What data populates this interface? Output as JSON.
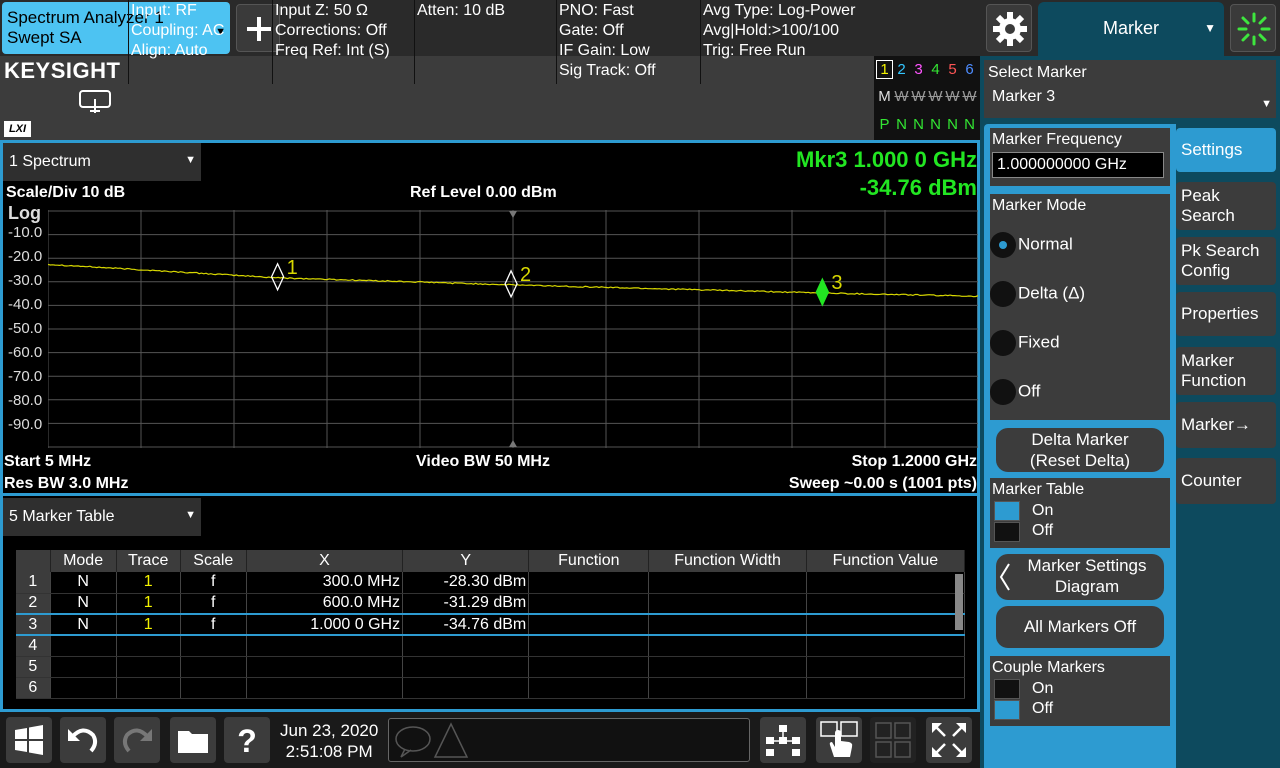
{
  "top": {
    "mode_tab_line1": "Spectrum Analyzer 1",
    "mode_tab_line2": "Swept SA",
    "menu_title": "Marker"
  },
  "info": {
    "brand": "KEYSIGHT",
    "lxi": "LXI",
    "col1": [
      "Input: RF",
      "Coupling: AC",
      "Align: Auto"
    ],
    "col2": [
      "Input Z: 50 Ω",
      "Corrections: Off",
      "Freq Ref: Int (S)"
    ],
    "col3": [
      "Atten: 10 dB"
    ],
    "col4": [
      "PNO: Fast",
      "Gate: Off",
      "IF Gain: Low",
      "Sig Track: Off"
    ],
    "col5": [
      "Avg Type: Log-Power",
      "Avg|Hold:>100/100",
      "Trig: Free Run"
    ],
    "trace_numbers": [
      "1",
      "2",
      "3",
      "4",
      "5",
      "6"
    ],
    "trace_number_colors": [
      "#f2f200",
      "#33c6ff",
      "#ff55ff",
      "#33e633",
      "#ff5555",
      "#4d8cff"
    ],
    "trace_mode_row": "M",
    "trace_mode_letters": [
      "W",
      "W",
      "W",
      "W",
      "W"
    ],
    "trace_det_row": [
      "P",
      "N",
      "N",
      "N",
      "N",
      "N"
    ]
  },
  "window1": {
    "tab_label": "1 Spectrum",
    "mkr_line1": "Mkr3  1.000 0 GHz",
    "mkr_line2": "-34.76 dBm",
    "scale_div": "Scale/Div 10 dB",
    "ref_level": "Ref Level 0.00 dBm",
    "scale_type": "Log",
    "y_ticks": [
      "-10.0",
      "-20.0",
      "-30.0",
      "-40.0",
      "-50.0",
      "-60.0",
      "-70.0",
      "-80.0",
      "-90.0"
    ],
    "start": "Start 5 MHz",
    "video_bw": "Video BW 50 MHz",
    "stop": "Stop 1.2000 GHz",
    "res_bw": "Res BW 3.0 MHz",
    "sweep": "Sweep ~0.00 s (1001 pts)",
    "markers": [
      {
        "label": "1",
        "freq_mhz": 300,
        "level_dbm": -28.3,
        "active": false
      },
      {
        "label": "2",
        "freq_mhz": 600,
        "level_dbm": -31.29,
        "active": false
      },
      {
        "label": "3",
        "freq_mhz": 1000,
        "level_dbm": -34.76,
        "active": true
      }
    ],
    "trace_color": "#d8d800",
    "active_marker_color": "#22e622"
  },
  "window5": {
    "tab_label": "5 Marker Table",
    "headers": [
      "",
      "Mode",
      "Trace",
      "Scale",
      "X",
      "Y",
      "Function",
      "Function Width",
      "Function Value"
    ],
    "rows": [
      [
        "1",
        "N",
        "1",
        "f",
        "300.0 MHz",
        "-28.30 dBm",
        "",
        "",
        ""
      ],
      [
        "2",
        "N",
        "1",
        "f",
        "600.0 MHz",
        "-31.29 dBm",
        "",
        "",
        ""
      ],
      [
        "3",
        "N",
        "1",
        "f",
        "1.000 0 GHz",
        "-34.76 dBm",
        "",
        "",
        ""
      ],
      [
        "4",
        "",
        "",
        "",
        "",
        "",
        "",
        "",
        ""
      ],
      [
        "5",
        "",
        "",
        "",
        "",
        "",
        "",
        "",
        ""
      ],
      [
        "6",
        "",
        "",
        "",
        "",
        "",
        "",
        "",
        ""
      ]
    ]
  },
  "bottom": {
    "date": "Jun 23, 2020",
    "time": "2:51:08 PM"
  },
  "panel": {
    "select_marker_label": "Select Marker",
    "select_marker_value": "Marker 3",
    "marker_freq_label": "Marker Frequency",
    "marker_freq_value": "1.000000000 GHz",
    "marker_mode_label": "Marker Mode",
    "mode_normal": "Normal",
    "mode_delta": "Delta (Δ)",
    "mode_fixed": "Fixed",
    "mode_off": "Off",
    "delta_marker_line1": "Delta Marker",
    "delta_marker_line2": "(Reset Delta)",
    "marker_table_label": "Marker Table",
    "on": "On",
    "off": "Off",
    "settings_diagram_line1": "Marker Settings",
    "settings_diagram_line2": "Diagram",
    "all_markers_off": "All Markers Off",
    "couple_markers_label": "Couple Markers",
    "tabs": [
      "Settings",
      "Peak Search",
      "Pk Search Config",
      "Properties",
      "Marker Function",
      "Marker→",
      "Counter"
    ]
  }
}
